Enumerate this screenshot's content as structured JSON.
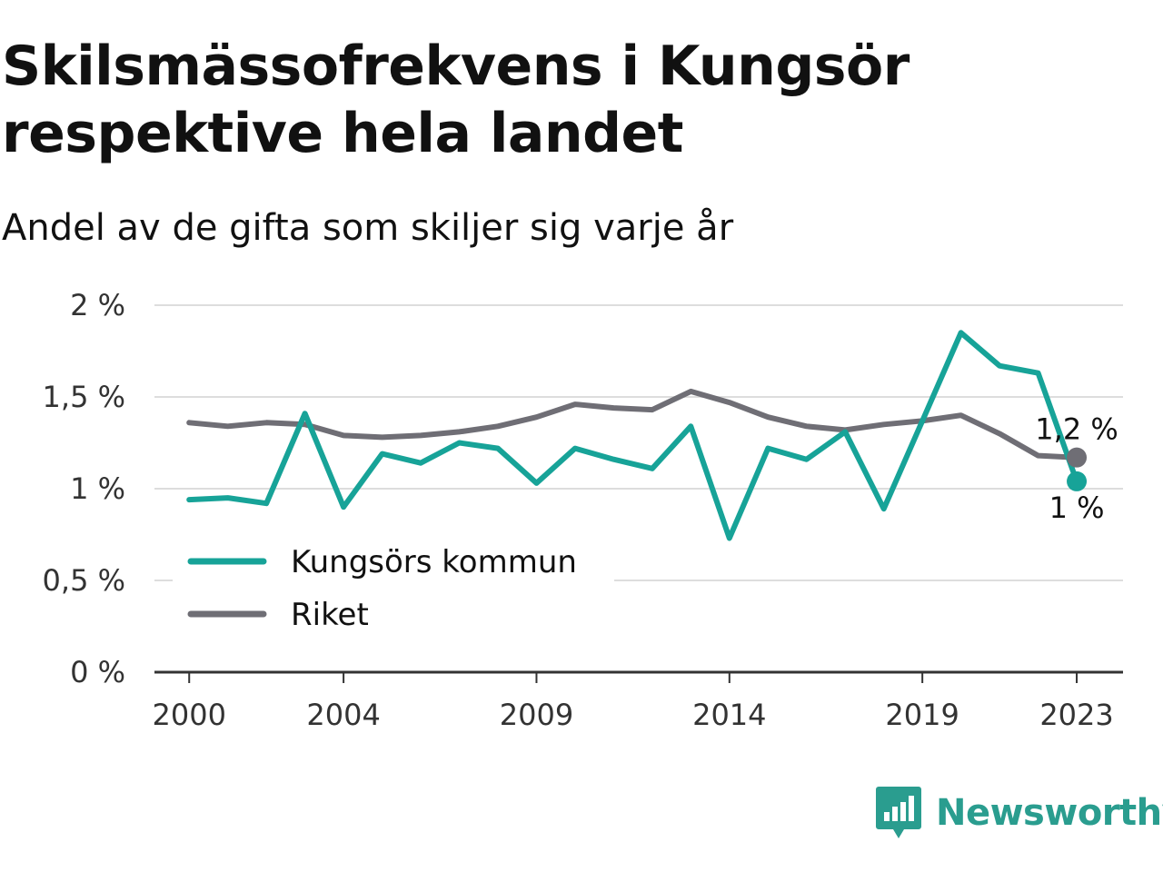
{
  "title_line1": "Skilsmässofrekvens i Kungsör",
  "title_line2": "respektive hela landet",
  "subtitle": "Andel av de gifta som skiljer sig varje år",
  "brand": "Newsworthy",
  "colors": {
    "kungsor": "#17a398",
    "riket": "#6f6e75",
    "grid": "#dddddd",
    "axis": "#333333",
    "brand": "#2a9d8f"
  },
  "chart_data": {
    "type": "line",
    "x": [
      2000,
      2001,
      2002,
      2003,
      2004,
      2005,
      2006,
      2007,
      2008,
      2009,
      2010,
      2011,
      2012,
      2013,
      2014,
      2015,
      2016,
      2017,
      2018,
      2019,
      2020,
      2021,
      2022,
      2023
    ],
    "xticks": [
      2000,
      2004,
      2009,
      2014,
      2019,
      2023
    ],
    "xtick_labels": [
      "2000",
      "2004",
      "2009",
      "2014",
      "2019",
      "2023"
    ],
    "yticks": [
      0,
      0.5,
      1,
      1.5,
      2
    ],
    "ytick_labels": [
      "0 %",
      "0,5 %",
      "1 %",
      "1,5 %",
      "2 %"
    ],
    "ylim": [
      0,
      2
    ],
    "xlim": [
      1999.1,
      2024.2
    ],
    "grid": true,
    "legend_position": "lower-left",
    "series": [
      {
        "name": "Kungsörs kommun",
        "color": "#17a398",
        "values": [
          0.94,
          0.95,
          0.92,
          1.41,
          0.9,
          1.19,
          1.14,
          1.25,
          1.22,
          1.03,
          1.22,
          1.16,
          1.11,
          1.34,
          0.73,
          1.22,
          1.16,
          1.31,
          0.89,
          1.37,
          1.85,
          1.67,
          1.63,
          1.04
        ],
        "end_label": "1 %"
      },
      {
        "name": "Riket",
        "color": "#6f6e75",
        "values": [
          1.36,
          1.34,
          1.36,
          1.35,
          1.29,
          1.28,
          1.29,
          1.31,
          1.34,
          1.39,
          1.46,
          1.44,
          1.43,
          1.53,
          1.47,
          1.39,
          1.34,
          1.32,
          1.35,
          1.37,
          1.4,
          1.3,
          1.18,
          1.17
        ],
        "end_label": "1,2 %"
      }
    ]
  }
}
